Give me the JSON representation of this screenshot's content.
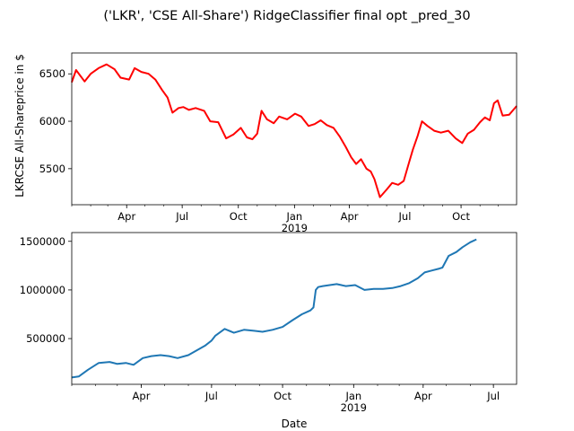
{
  "title": "('LKR', 'CSE All-Share') RidgeClassifier final opt _pred_30",
  "chart_data": [
    {
      "type": "line",
      "ylabel": "LKRCSE All-Shareprice in $",
      "xlabel": "",
      "color": "#ff0000",
      "x_range": [
        "2018-01-01",
        "2019-12-31"
      ],
      "ylim": [
        5120,
        6720
      ],
      "y_ticks": [
        5500,
        6000,
        6500
      ],
      "y_tick_labels": [
        "5500",
        "6000",
        "6500"
      ],
      "x_ticks": [
        {
          "date": "2018-04-01",
          "label": "Apr"
        },
        {
          "date": "2018-07-01",
          "label": "Jul"
        },
        {
          "date": "2018-10-01",
          "label": "Oct"
        },
        {
          "date": "2019-01-01",
          "label": "Jan"
        },
        {
          "date": "2019-04-01",
          "label": "Apr"
        },
        {
          "date": "2019-07-01",
          "label": "Jul"
        },
        {
          "date": "2019-10-01",
          "label": "Oct"
        }
      ],
      "year_label": "2019",
      "series": [
        {
          "x": [
            "2018-01-01",
            "2018-01-08",
            "2018-01-22",
            "2018-02-01",
            "2018-02-14",
            "2018-02-27",
            "2018-03-12",
            "2018-03-22",
            "2018-04-05",
            "2018-04-14",
            "2018-04-25",
            "2018-05-07",
            "2018-05-18",
            "2018-05-29",
            "2018-06-07",
            "2018-06-15",
            "2018-06-25",
            "2018-07-03",
            "2018-07-12",
            "2018-07-23",
            "2018-08-06",
            "2018-08-16",
            "2018-08-29",
            "2018-09-11",
            "2018-09-23",
            "2018-10-05",
            "2018-10-15",
            "2018-10-24",
            "2018-11-01",
            "2018-11-08",
            "2018-11-17",
            "2018-11-28",
            "2018-12-07",
            "2018-12-20",
            "2019-01-02",
            "2019-01-12",
            "2019-01-24",
            "2019-02-03",
            "2019-02-13",
            "2019-02-23",
            "2019-03-06",
            "2019-03-16",
            "2019-03-26",
            "2019-04-04",
            "2019-04-12",
            "2019-04-20",
            "2019-04-29",
            "2019-05-06",
            "2019-05-12",
            "2019-05-21",
            "2019-06-01",
            "2019-06-10",
            "2019-06-20",
            "2019-06-29",
            "2019-07-07",
            "2019-07-14",
            "2019-07-22",
            "2019-07-29",
            "2019-08-07",
            "2019-08-18",
            "2019-08-29",
            "2019-09-10",
            "2019-09-22",
            "2019-10-03",
            "2019-10-12",
            "2019-10-22",
            "2019-11-01",
            "2019-11-09",
            "2019-11-17",
            "2019-11-24",
            "2019-11-30",
            "2019-12-08",
            "2019-12-19",
            "2019-12-31"
          ],
          "y": [
            6410,
            6540,
            6420,
            6500,
            6560,
            6600,
            6550,
            6460,
            6440,
            6560,
            6520,
            6500,
            6440,
            6330,
            6250,
            6090,
            6140,
            6150,
            6120,
            6140,
            6110,
            6000,
            5990,
            5820,
            5860,
            5930,
            5830,
            5810,
            5870,
            6110,
            6020,
            5980,
            6050,
            6020,
            6080,
            6050,
            5950,
            5970,
            6010,
            5960,
            5930,
            5840,
            5730,
            5620,
            5550,
            5600,
            5500,
            5470,
            5390,
            5200,
            5280,
            5350,
            5330,
            5370,
            5550,
            5700,
            5850,
            6000,
            5950,
            5900,
            5880,
            5900,
            5820,
            5770,
            5870,
            5910,
            5990,
            6040,
            6010,
            6190,
            6220,
            6060,
            6070,
            6160
          ]
        }
      ]
    },
    {
      "type": "line",
      "ylabel": "",
      "xlabel": "Date",
      "color": "#1f77b4",
      "x_range": [
        "2018-01-01",
        "2019-07-31"
      ],
      "ylim": [
        30000,
        1590000
      ],
      "y_ticks": [
        500000,
        1000000,
        1500000
      ],
      "y_tick_labels": [
        "500000",
        "1000000",
        "1500000"
      ],
      "x_ticks": [
        {
          "date": "2018-04-01",
          "label": "Apr"
        },
        {
          "date": "2018-07-01",
          "label": "Jul"
        },
        {
          "date": "2018-10-01",
          "label": "Oct"
        },
        {
          "date": "2019-01-01",
          "label": "Jan"
        },
        {
          "date": "2019-04-01",
          "label": "Apr"
        },
        {
          "date": "2019-07-01",
          "label": "Jul"
        }
      ],
      "year_label": "2019",
      "series": [
        {
          "x": [
            "2018-01-01",
            "2018-01-10",
            "2018-01-22",
            "2018-02-05",
            "2018-02-19",
            "2018-03-01",
            "2018-03-12",
            "2018-03-22",
            "2018-04-03",
            "2018-04-14",
            "2018-04-26",
            "2018-05-07",
            "2018-05-18",
            "2018-06-01",
            "2018-06-12",
            "2018-06-23",
            "2018-07-01",
            "2018-07-06",
            "2018-07-18",
            "2018-07-30",
            "2018-08-12",
            "2018-08-25",
            "2018-09-05",
            "2018-09-18",
            "2018-10-01",
            "2018-10-14",
            "2018-10-26",
            "2018-11-06",
            "2018-11-10",
            "2018-11-13",
            "2018-11-16",
            "2018-11-22",
            "2018-12-01",
            "2018-12-10",
            "2018-12-22",
            "2019-01-03",
            "2019-01-15",
            "2019-01-27",
            "2019-02-08",
            "2019-02-20",
            "2019-03-03",
            "2019-03-14",
            "2019-03-25",
            "2019-04-03",
            "2019-04-12",
            "2019-04-22",
            "2019-04-26",
            "2019-05-04",
            "2019-05-14",
            "2019-05-22",
            "2019-06-01",
            "2019-06-09"
          ],
          "y": [
            100000,
            110000,
            180000,
            250000,
            260000,
            240000,
            250000,
            230000,
            300000,
            320000,
            330000,
            320000,
            300000,
            330000,
            380000,
            430000,
            480000,
            530000,
            600000,
            560000,
            590000,
            580000,
            570000,
            590000,
            620000,
            690000,
            750000,
            790000,
            820000,
            1000000,
            1030000,
            1040000,
            1050000,
            1060000,
            1040000,
            1050000,
            1000000,
            1010000,
            1010000,
            1020000,
            1040000,
            1070000,
            1120000,
            1180000,
            1200000,
            1220000,
            1230000,
            1350000,
            1390000,
            1440000,
            1490000,
            1520000
          ]
        }
      ]
    }
  ]
}
